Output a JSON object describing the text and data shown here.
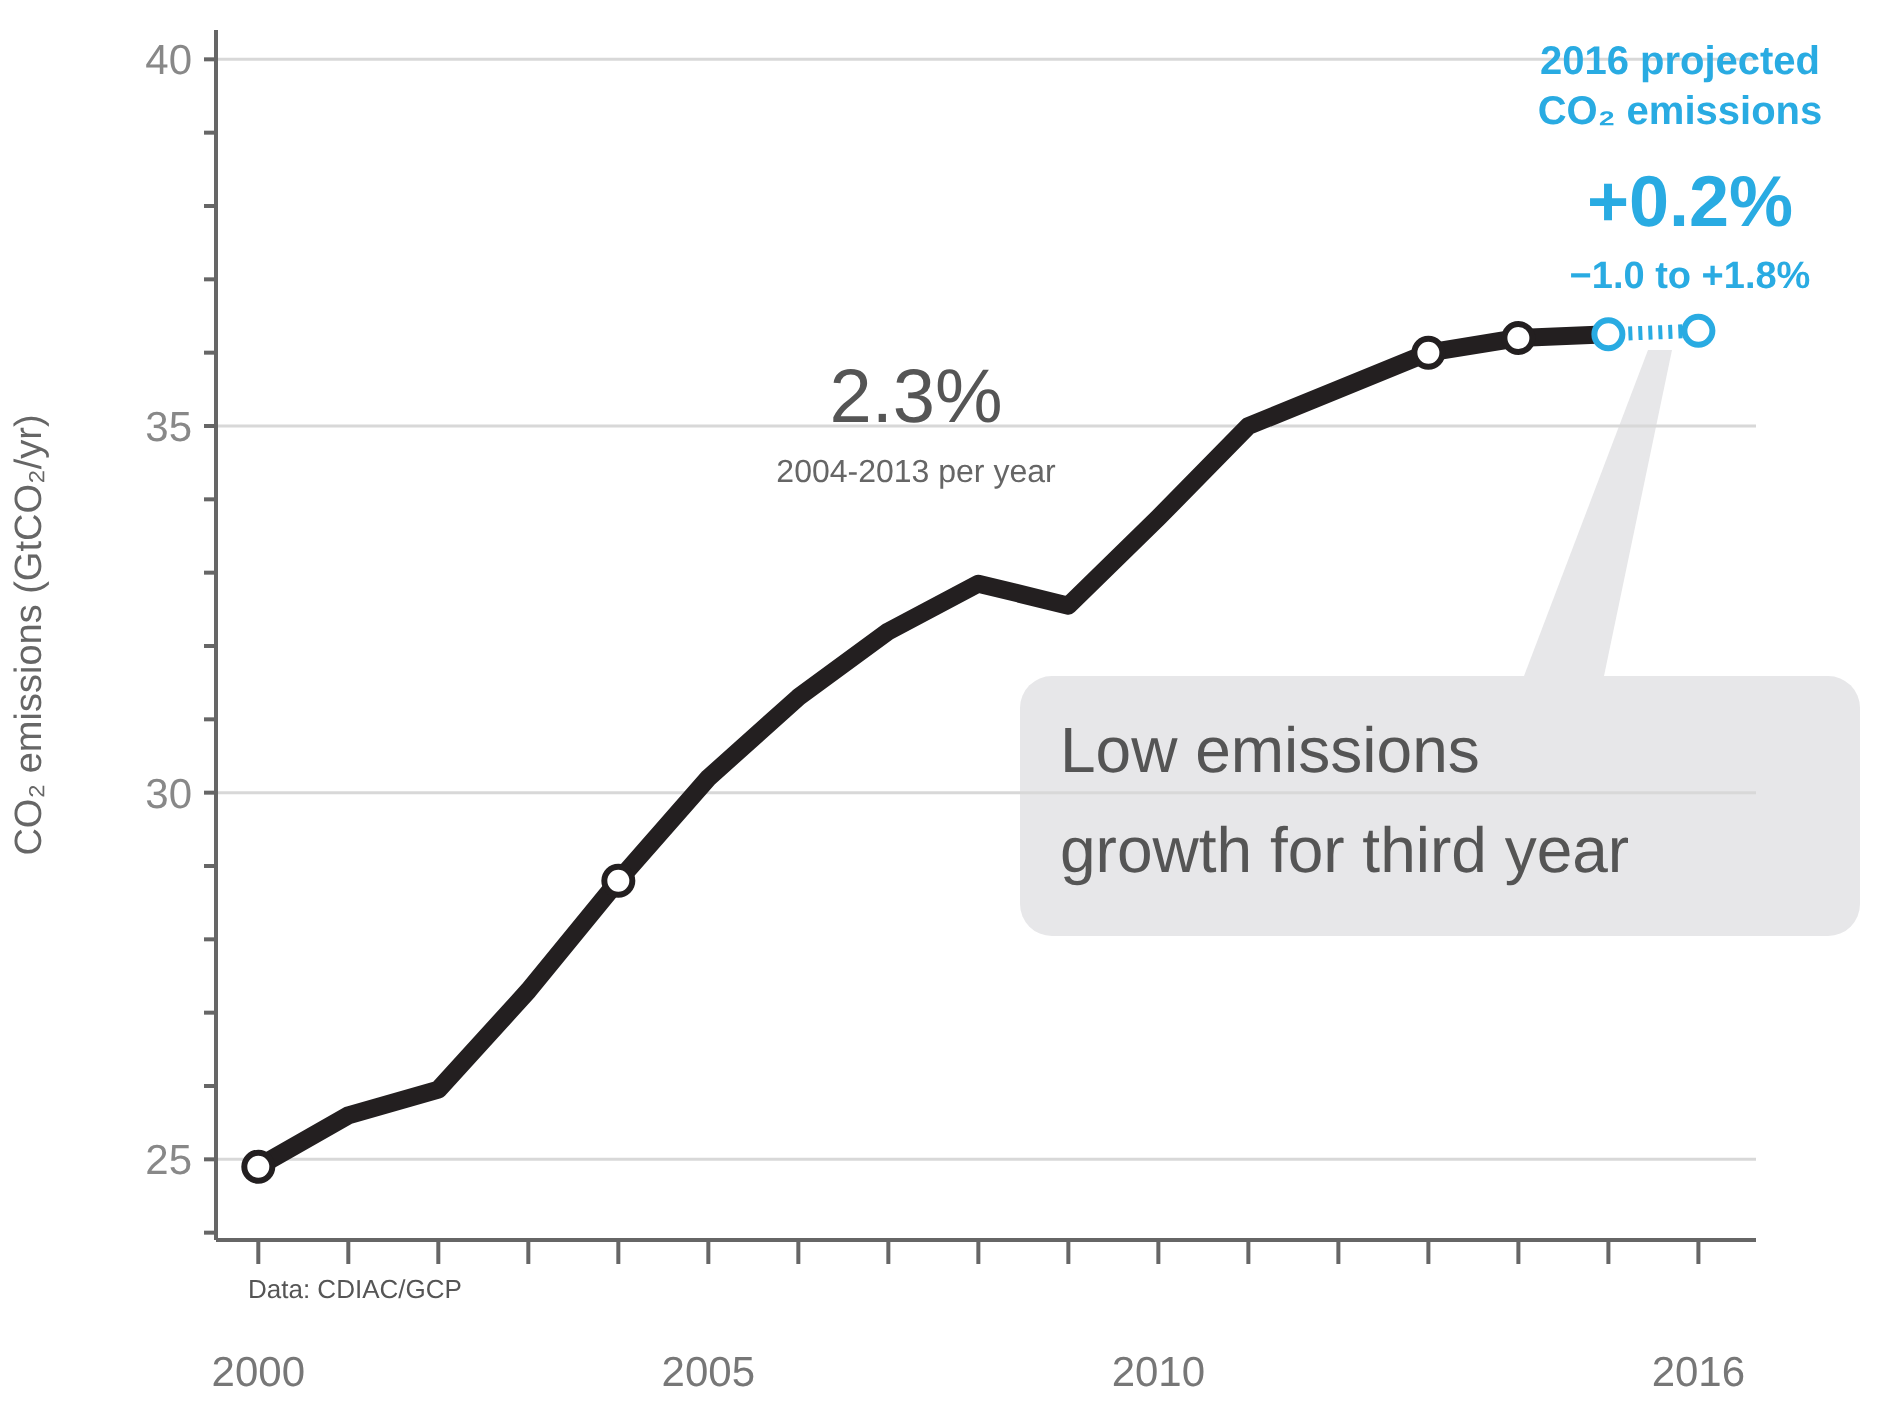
{
  "chart_data": {
    "type": "line",
    "ylabel": "CO₂ emissions (GtCO₂/yr)",
    "series": [
      {
        "color": "#231f20",
        "marker": "none",
        "line_style": "solid",
        "x": [
          2000,
          2001,
          2002,
          2003,
          2004,
          2005,
          2006,
          2007,
          2008,
          2009,
          2010,
          2011,
          2012,
          2013,
          2014,
          2015
        ],
        "values": [
          24.9,
          25.6,
          25.95,
          27.3,
          28.8,
          30.2,
          31.3,
          32.2,
          32.85,
          32.55,
          33.75,
          35.0,
          35.5,
          36.0,
          36.2,
          36.25
        ]
      },
      {
        "type": "scatter",
        "color": "#231f20",
        "marker": "circle",
        "x": [
          2000,
          2004,
          2013,
          2014
        ],
        "values": [
          24.9,
          28.8,
          36.0,
          36.2
        ]
      },
      {
        "type": "line",
        "color": "#29abe2",
        "marker": "circle",
        "line_style": "dotted",
        "x": [
          2015,
          2016
        ],
        "values": [
          36.25,
          36.3
        ]
      }
    ],
    "xlim": [
      1999.53,
      2016.64
    ],
    "xticks": [
      2000,
      {
        "value": 2001,
        "label": null
      },
      {
        "value": 2002,
        "label": null
      },
      {
        "value": 2003,
        "label": null
      },
      {
        "value": 2004,
        "label": null
      },
      2005,
      {
        "value": 2006,
        "label": null
      },
      {
        "value": 2007,
        "label": null
      },
      {
        "value": 2008,
        "label": null
      },
      {
        "value": 2009,
        "label": null
      },
      2010,
      {
        "value": 2011,
        "label": null
      },
      {
        "value": 2012,
        "label": null
      },
      {
        "value": 2013,
        "label": null
      },
      {
        "value": 2014,
        "label": null
      },
      {
        "value": 2015,
        "label": null
      },
      2016
    ],
    "ylim": [
      23.9,
      40.4
    ],
    "yticks": [
      {
        "value": 24,
        "label": null
      },
      25,
      {
        "value": 26,
        "label": null
      },
      {
        "value": 27,
        "label": null
      },
      {
        "value": 28,
        "label": null
      },
      {
        "value": 29,
        "label": null
      },
      30,
      {
        "value": 31,
        "label": null
      },
      {
        "value": 32,
        "label": null
      },
      {
        "value": 33,
        "label": null
      },
      {
        "value": 34,
        "label": null
      },
      35,
      {
        "value": 36,
        "label": null
      },
      {
        "value": 37,
        "label": null
      },
      {
        "value": 38,
        "label": null
      },
      {
        "value": 39,
        "label": null
      },
      40
    ],
    "grid": "y",
    "annotations": [
      "2.3%",
      "2004-2013 per year",
      "2016 projected",
      "CO₂ emissions",
      "+0.2%",
      "−1.0 to +1.8%",
      "Low emissions",
      "growth for third year",
      "Data: CDIAC/GCP"
    ]
  }
}
